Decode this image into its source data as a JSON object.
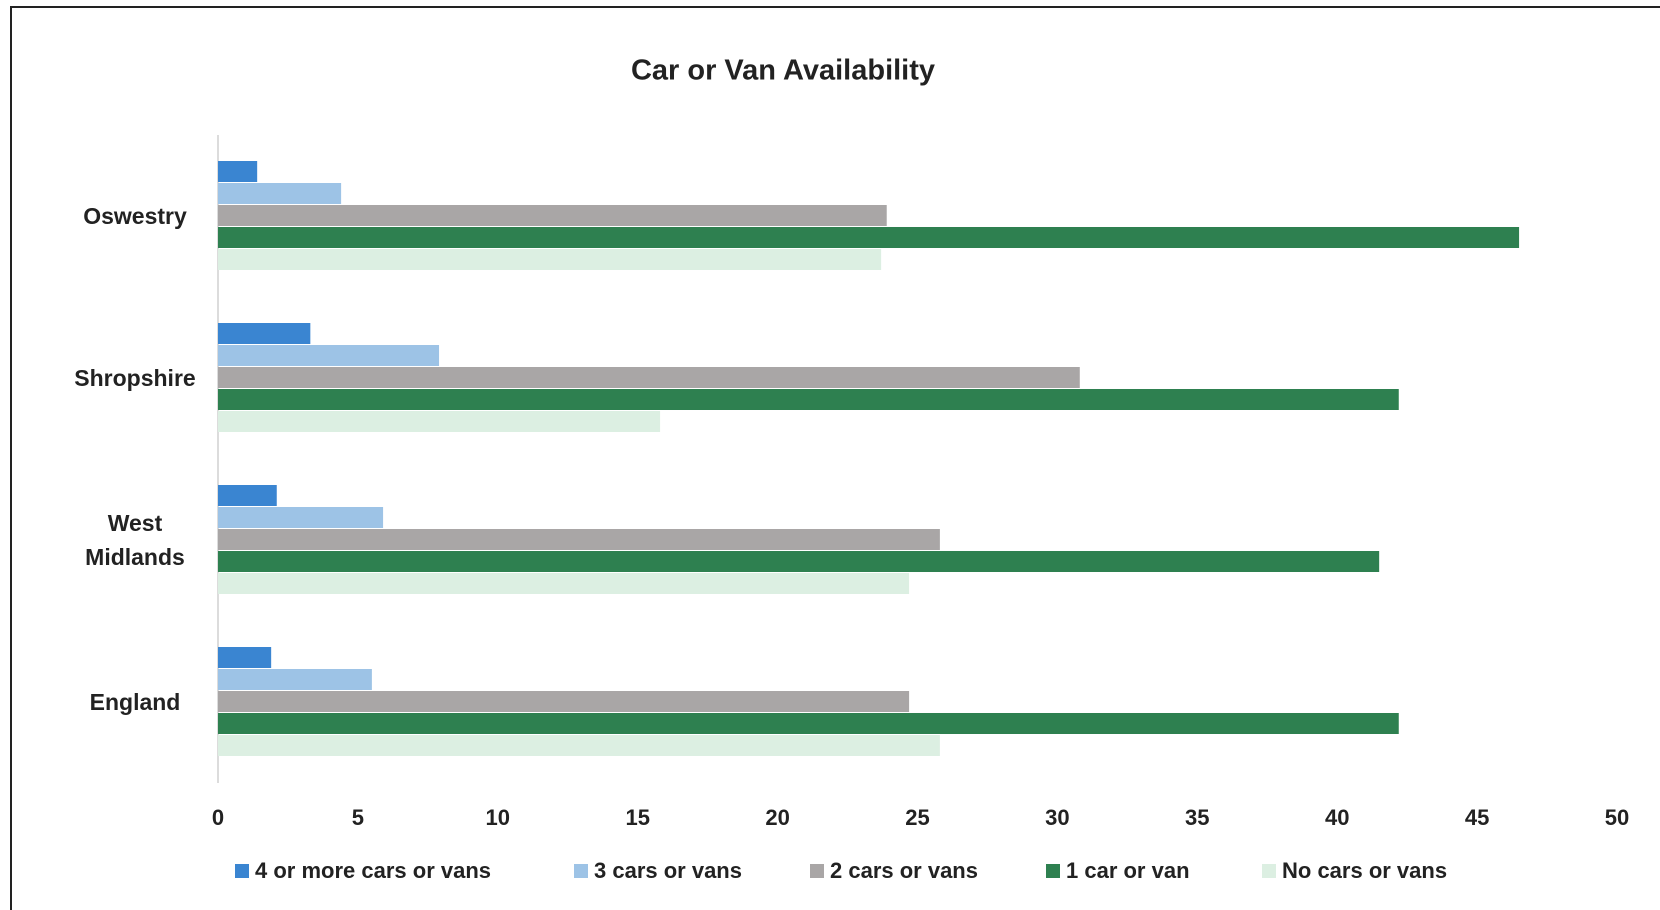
{
  "chart_data": {
    "type": "barh",
    "title": "Car or Van Availability",
    "categories": [
      "Oswestry",
      "Shropshire",
      "West Midlands",
      "England"
    ],
    "series": [
      {
        "name": "4 or more cars or vans",
        "color": "#3a85d1",
        "values": [
          1.4,
          3.3,
          2.1,
          1.9
        ]
      },
      {
        "name": "3 cars or vans",
        "color": "#9dc3e6",
        "values": [
          4.4,
          7.9,
          5.9,
          5.5
        ]
      },
      {
        "name": "2 cars or vans",
        "color": "#a9a6a6",
        "values": [
          23.9,
          30.8,
          25.8,
          24.7
        ]
      },
      {
        "name": "1 car or van",
        "color": "#2e8050",
        "values": [
          46.5,
          42.2,
          41.5,
          42.2
        ]
      },
      {
        "name": "No cars or vans",
        "color": "#dcefe2",
        "values": [
          23.7,
          15.8,
          24.7,
          25.8
        ]
      }
    ],
    "xlim": [
      0,
      50
    ],
    "xticks": [
      0,
      5,
      10,
      15,
      20,
      25,
      30,
      35,
      40,
      45,
      50
    ],
    "grid": false,
    "legend": "bottom"
  }
}
